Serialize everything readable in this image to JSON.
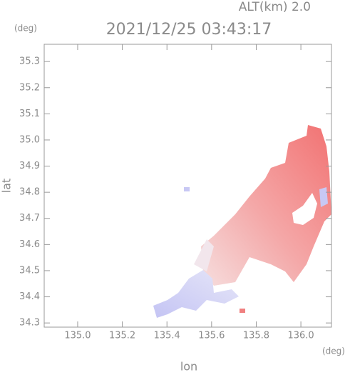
{
  "chart_data": {
    "type": "map",
    "title": "2021/12/25 03:43:17",
    "altitude_label": "ALT(km) 2.0",
    "x_unit": "(deg)",
    "y_unit": "(deg)",
    "xlabel": "lon",
    "ylabel": "lat",
    "xlim": [
      134.85,
      136.137
    ],
    "ylim": [
      34.284,
      35.366
    ],
    "xticks": [
      {
        "value": 135.0,
        "label": "135.0"
      },
      135.2,
      135.4,
      135.6,
      135.8,
      {
        "value": 136.0,
        "label": "136.0"
      }
    ],
    "yticks": [
      34.3,
      34.4,
      34.5,
      34.6,
      34.7,
      34.8,
      34.9,
      {
        "value": 35.0,
        "label": "35.0"
      },
      35.1,
      35.2,
      35.3
    ]
  }
}
